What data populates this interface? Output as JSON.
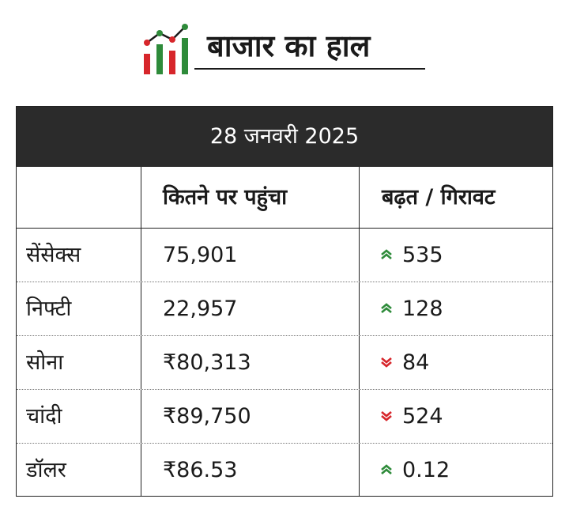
{
  "header": {
    "title": "बाजार का हाल",
    "logo_icon": "market-chart-icon",
    "logo_colors": {
      "red": "#d7262b",
      "green": "#2e8b3a",
      "dark": "#1a1a1a"
    }
  },
  "table": {
    "date": "28 जनवरी 2025",
    "columns": [
      "",
      "कितने पर पहुंचा",
      "बढ़त / गिरावट"
    ],
    "rows": [
      {
        "name": "सेंसेक्स",
        "value": "75,901",
        "change": "535",
        "direction": "up"
      },
      {
        "name": "निफ्टी",
        "value": "22,957",
        "change": "128",
        "direction": "up"
      },
      {
        "name": "सोना",
        "value": "₹80,313",
        "change": "84",
        "direction": "down"
      },
      {
        "name": "चांदी",
        "value": "₹89,750",
        "change": "524",
        "direction": "down"
      },
      {
        "name": "डॉलर",
        "value": "₹86.53",
        "change": "0.12",
        "direction": "up"
      }
    ],
    "colors": {
      "up": "#2e8b3a",
      "down": "#d7262b",
      "band": "#2b2b2b"
    }
  }
}
